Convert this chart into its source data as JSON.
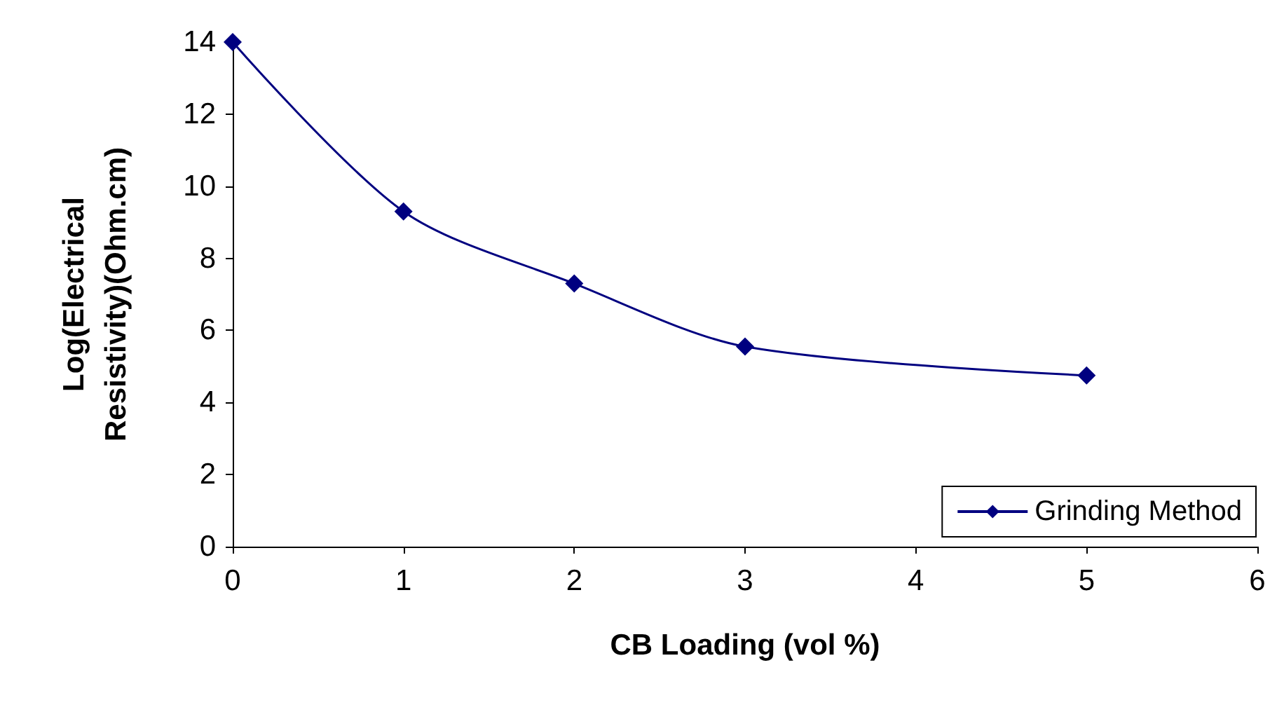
{
  "chart_data": {
    "type": "line",
    "xlabel": "CB Loading (vol %)",
    "ylabel": "Log(Electrical\nResistivity)(Ohm.cm)",
    "x": [
      0,
      1,
      2,
      3,
      5
    ],
    "series": [
      {
        "name": "Grinding Method",
        "color": "#000080",
        "values": [
          14,
          9.3,
          7.3,
          5.55,
          4.75
        ]
      }
    ],
    "xlim": [
      0,
      6
    ],
    "xticks": [
      0,
      1,
      2,
      3,
      4,
      5,
      6
    ],
    "ylim": [
      0,
      14
    ],
    "yticks": [
      0,
      2,
      4,
      6,
      8,
      10,
      12,
      14
    ],
    "grid": false,
    "legend": "bottom right",
    "marker": "diamond",
    "line_style": "solid"
  }
}
